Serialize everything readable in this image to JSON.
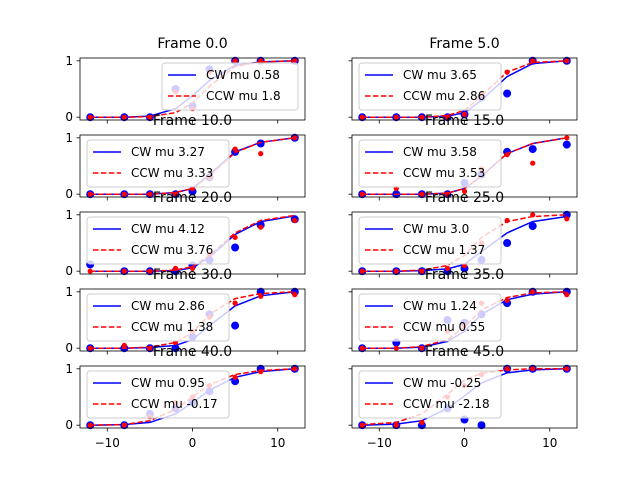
{
  "colors": {
    "cw": "#0000ff",
    "ccw": "#ff0000",
    "legend_edge": "#cccccc",
    "axis": "#000000"
  },
  "chart_data": [
    {
      "type": "scatter",
      "title": "Frame 0.0",
      "xlim": [
        -13.2,
        13.2
      ],
      "ylim": [
        -0.05,
        1.05
      ],
      "x": [
        -12,
        -8,
        -5,
        -2,
        0,
        2,
        5,
        8,
        12
      ],
      "series": [
        {
          "name": "CW mu 0.58",
          "style": "solid",
          "points": [
            0,
            0,
            0,
            0.5,
            0.2,
            0.85,
            1,
            1,
            1
          ],
          "fit": [
            0,
            0,
            0.02,
            0.15,
            0.38,
            0.65,
            0.92,
            0.98,
            1
          ]
        },
        {
          "name": "CCW mu 1.8",
          "style": "dashed",
          "points": [
            0,
            0,
            0,
            0.45,
            0.15,
            0.8,
            1,
            1,
            1
          ],
          "fit": [
            0,
            0,
            0.01,
            0.08,
            0.25,
            0.55,
            0.9,
            0.98,
            1
          ]
        }
      ]
    },
    {
      "type": "scatter",
      "title": "Frame 5.0",
      "xlim": [
        -13.2,
        13.2
      ],
      "ylim": [
        -0.05,
        1.05
      ],
      "x": [
        -12,
        -8,
        -5,
        -2,
        0,
        2,
        5,
        8,
        12
      ],
      "series": [
        {
          "name": "CW mu 3.65",
          "style": "solid",
          "points": [
            0,
            0,
            0,
            0,
            0.05,
            0.35,
            0.42,
            1,
            1
          ],
          "fit": [
            0,
            0,
            0,
            0.02,
            0.08,
            0.3,
            0.72,
            0.95,
            1
          ]
        },
        {
          "name": "CCW mu 2.86",
          "style": "dashed",
          "points": [
            0,
            0,
            0,
            0,
            0.05,
            0.4,
            0.8,
            1,
            1
          ],
          "fit": [
            0,
            0,
            0,
            0.03,
            0.12,
            0.38,
            0.8,
            0.97,
            1
          ]
        }
      ]
    },
    {
      "type": "scatter",
      "title": "Frame 10.0",
      "xlim": [
        -13.2,
        13.2
      ],
      "ylim": [
        -0.05,
        1.05
      ],
      "x": [
        -12,
        -8,
        -5,
        -2,
        0,
        2,
        5,
        8,
        12
      ],
      "series": [
        {
          "name": "CW mu 3.27",
          "style": "solid",
          "points": [
            0,
            0,
            0,
            0,
            0.05,
            0.3,
            0.75,
            0.9,
            1
          ],
          "fit": [
            0,
            0,
            0,
            0.03,
            0.1,
            0.35,
            0.75,
            0.92,
            1
          ]
        },
        {
          "name": "CCW mu 3.33",
          "style": "dashed",
          "points": [
            0,
            0,
            0,
            0,
            0.1,
            0.3,
            0.8,
            0.72,
            1
          ],
          "fit": [
            0,
            0,
            0,
            0.03,
            0.1,
            0.33,
            0.74,
            0.92,
            1
          ]
        }
      ]
    },
    {
      "type": "scatter",
      "title": "Frame 15.0",
      "xlim": [
        -13.2,
        13.2
      ],
      "ylim": [
        -0.05,
        1.05
      ],
      "x": [
        -12,
        -8,
        -5,
        -2,
        0,
        2,
        5,
        8,
        12
      ],
      "series": [
        {
          "name": "CW mu 3.58",
          "style": "solid",
          "points": [
            0,
            0,
            0,
            0,
            0.2,
            0.35,
            0.75,
            0.8,
            0.88
          ],
          "fit": [
            0,
            0,
            0,
            0.02,
            0.1,
            0.32,
            0.72,
            0.9,
            1
          ]
        },
        {
          "name": "CCW mu 3.53",
          "style": "dashed",
          "points": [
            0,
            0.1,
            0,
            0,
            0.05,
            0.45,
            0.7,
            0.55,
            1
          ],
          "fit": [
            0,
            0,
            0,
            0.02,
            0.1,
            0.32,
            0.72,
            0.9,
            1
          ]
        }
      ]
    },
    {
      "type": "scatter",
      "title": "Frame 20.0",
      "xlim": [
        -13.2,
        13.2
      ],
      "ylim": [
        -0.05,
        1.05
      ],
      "x": [
        -12,
        -8,
        -5,
        -2,
        0,
        2,
        5,
        8,
        12
      ],
      "series": [
        {
          "name": "CW mu 4.12",
          "style": "solid",
          "points": [
            0.12,
            0,
            0,
            0,
            0.1,
            0.2,
            0.42,
            0.82,
            0.92
          ],
          "fit": [
            0,
            0,
            0,
            0.01,
            0.06,
            0.25,
            0.65,
            0.88,
            0.98
          ]
        },
        {
          "name": "CCW mu 3.76",
          "style": "dashed",
          "points": [
            0,
            0,
            0,
            0.05,
            0.05,
            0.3,
            0.6,
            0.78,
            0.9
          ],
          "fit": [
            0,
            0,
            0,
            0.02,
            0.08,
            0.28,
            0.68,
            0.9,
            0.99
          ]
        }
      ]
    },
    {
      "type": "scatter",
      "title": "Frame 25.0",
      "xlim": [
        -13.2,
        13.2
      ],
      "ylim": [
        -0.05,
        1.05
      ],
      "x": [
        -12,
        -8,
        -5,
        -2,
        0,
        2,
        5,
        8,
        12
      ],
      "series": [
        {
          "name": "CW mu 3.0",
          "style": "solid",
          "points": [
            0,
            0,
            0,
            0,
            0.05,
            0.2,
            0.5,
            0.8,
            1
          ],
          "fit": [
            0,
            0,
            0.01,
            0.04,
            0.12,
            0.35,
            0.68,
            0.88,
            0.97
          ]
        },
        {
          "name": "CCW mu 1.37",
          "style": "dashed",
          "points": [
            0,
            0,
            0,
            0.05,
            0.1,
            0.5,
            0.9,
            1,
            0.93
          ],
          "fit": [
            0,
            0,
            0.02,
            0.1,
            0.28,
            0.6,
            0.88,
            0.97,
            1
          ]
        }
      ]
    },
    {
      "type": "scatter",
      "title": "Frame 30.0",
      "xlim": [
        -13.2,
        13.2
      ],
      "ylim": [
        -0.05,
        1.05
      ],
      "x": [
        -12,
        -8,
        -5,
        -2,
        0,
        2,
        5,
        8,
        12
      ],
      "series": [
        {
          "name": "CW mu 2.86",
          "style": "solid",
          "points": [
            0,
            0,
            0,
            0,
            0.2,
            0.6,
            0.4,
            1,
            1
          ],
          "fit": [
            0,
            0,
            0.01,
            0.05,
            0.15,
            0.4,
            0.75,
            0.93,
            1
          ]
        },
        {
          "name": "CCW mu 1.38",
          "style": "dashed",
          "points": [
            0,
            0.05,
            0,
            0.1,
            0.3,
            0.55,
            0.8,
            0.92,
            0.95
          ],
          "fit": [
            0,
            0,
            0.02,
            0.1,
            0.28,
            0.6,
            0.88,
            0.97,
            1
          ]
        }
      ]
    },
    {
      "type": "scatter",
      "title": "Frame 35.0",
      "xlim": [
        -13.2,
        13.2
      ],
      "ylim": [
        -0.05,
        1.05
      ],
      "x": [
        -12,
        -8,
        -5,
        -2,
        0,
        2,
        5,
        8,
        12
      ],
      "series": [
        {
          "name": "CW mu 1.24",
          "style": "solid",
          "points": [
            0,
            0.1,
            0,
            0.5,
            0.45,
            0.6,
            0.8,
            1,
            1
          ],
          "fit": [
            0,
            0,
            0.02,
            0.12,
            0.3,
            0.6,
            0.86,
            0.96,
            1
          ]
        },
        {
          "name": "CCW mu 0.55",
          "style": "dashed",
          "points": [
            0,
            0,
            0,
            0.3,
            0.4,
            0.8,
            0.85,
            1,
            0.95
          ],
          "fit": [
            0,
            0,
            0.03,
            0.15,
            0.38,
            0.68,
            0.9,
            0.98,
            1
          ]
        }
      ]
    },
    {
      "type": "scatter",
      "title": "Frame 40.0",
      "xlim": [
        -13.2,
        13.2
      ],
      "ylim": [
        -0.05,
        1.05
      ],
      "x": [
        -12,
        -8,
        -5,
        -2,
        0,
        2,
        5,
        8,
        12
      ],
      "series": [
        {
          "name": "CW mu 0.95",
          "style": "solid",
          "points": [
            0,
            0,
            0.2,
            0.3,
            0.4,
            0.6,
            0.78,
            1,
            1
          ],
          "fit": [
            0,
            0.01,
            0.05,
            0.2,
            0.4,
            0.62,
            0.85,
            0.95,
            1
          ]
        },
        {
          "name": "CCW mu -0.17",
          "style": "dashed",
          "points": [
            0,
            0,
            0.15,
            0.4,
            0.5,
            0.7,
            0.85,
            0.95,
            1
          ],
          "fit": [
            0,
            0.01,
            0.08,
            0.28,
            0.5,
            0.72,
            0.9,
            0.97,
            1
          ]
        }
      ]
    },
    {
      "type": "scatter",
      "title": "Frame 45.0",
      "xlim": [
        -13.2,
        13.2
      ],
      "ylim": [
        -0.05,
        1.05
      ],
      "x": [
        -12,
        -8,
        -5,
        -2,
        0,
        2,
        5,
        8,
        12
      ],
      "series": [
        {
          "name": "CW mu -0.25",
          "style": "solid",
          "points": [
            0,
            0,
            0,
            0.3,
            0.1,
            0.0,
            1,
            1,
            1
          ],
          "fit": [
            0,
            0.02,
            0.08,
            0.3,
            0.52,
            0.75,
            0.93,
            0.98,
            1
          ]
        },
        {
          "name": "CCW mu -2.18",
          "style": "dashed",
          "points": [
            0,
            0,
            0.05,
            0.5,
            0.7,
            0.9,
            1,
            1,
            1
          ],
          "fit": [
            0.01,
            0.05,
            0.2,
            0.55,
            0.8,
            0.92,
            0.98,
            1,
            1
          ]
        }
      ]
    }
  ]
}
